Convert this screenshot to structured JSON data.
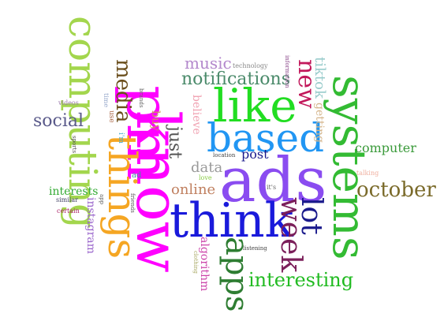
{
  "words": [
    {
      "text": "ads",
      "color": "#8a4cf0",
      "emphasis": 1
    },
    {
      "text": "pm",
      "color": "#ff00ff",
      "emphasis": 0.96
    },
    {
      "text": "know",
      "color": "#ff00ff",
      "emphasis": 0.95
    },
    {
      "text": "think",
      "color": "#1a1adb",
      "emphasis": 0.92
    },
    {
      "text": "like",
      "color": "#22dd22",
      "emphasis": 0.85
    },
    {
      "text": "systems",
      "color": "#33bb33",
      "emphasis": 0.85
    },
    {
      "text": "computing",
      "color": "#a3d64d",
      "emphasis": 0.78
    },
    {
      "text": "things",
      "color": "#f5a623",
      "emphasis": 0.78
    },
    {
      "text": "based",
      "color": "#2196f3",
      "emphasis": 0.75
    },
    {
      "text": "apps",
      "color": "#2e7d32",
      "emphasis": 0.6
    },
    {
      "text": "week",
      "color": "#7b1f5a",
      "emphasis": 0.55
    },
    {
      "text": "lot",
      "color": "#1a1a8c",
      "emphasis": 0.55
    },
    {
      "text": "new",
      "color": "#c2185b",
      "emphasis": 0.5
    },
    {
      "text": "october",
      "color": "#7a6a2a",
      "emphasis": 0.45
    },
    {
      "text": "interesting",
      "color": "#22bb22",
      "emphasis": 0.45
    },
    {
      "text": "media",
      "color": "#6b4f1d",
      "emphasis": 0.42
    },
    {
      "text": "notifications",
      "color": "#4a8a6a",
      "emphasis": 0.4
    },
    {
      "text": "just",
      "color": "#555555",
      "emphasis": 0.38
    },
    {
      "text": "social",
      "color": "#5a5a8a",
      "emphasis": 0.35
    },
    {
      "text": "online",
      "color": "#c08060",
      "emphasis": 0.33
    },
    {
      "text": "tiktok",
      "color": "#99cccc",
      "emphasis": 0.3
    },
    {
      "text": "music",
      "color": "#b388cc",
      "emphasis": 0.3
    },
    {
      "text": "computer",
      "color": "#3a9a3a",
      "emphasis": 0.3
    },
    {
      "text": "data",
      "color": "#9a9a9a",
      "emphasis": 0.3
    },
    {
      "text": "post",
      "color": "#1a1a8c",
      "emphasis": 0.28
    },
    {
      "text": "algorithm",
      "color": "#cc44aa",
      "emphasis": 0.25
    },
    {
      "text": "instagram",
      "color": "#9a66cc",
      "emphasis": 0.25
    },
    {
      "text": "interests",
      "color": "#33aa33",
      "emphasis": 0.25
    },
    {
      "text": "believe",
      "color": "#f0a0b0",
      "emphasis": 0.25
    },
    {
      "text": "getting",
      "color": "#d4b48a",
      "emphasis": 0.22
    },
    {
      "text": "buy",
      "color": "#cc9a5a",
      "emphasis": 0.22
    },
    {
      "text": "technology",
      "color": "#888888",
      "emphasis": 0.12
    },
    {
      "text": "information",
      "color": "#884488",
      "emphasis": 0.1
    },
    {
      "text": "videos",
      "color": "#9a7aaa",
      "emphasis": 0.12
    },
    {
      "text": "time",
      "color": "#99aacc",
      "emphasis": 0.12
    },
    {
      "text": "use",
      "color": "#aa6644",
      "emphasis": 0.12
    },
    {
      "text": "brands",
      "color": "#666666",
      "emphasis": 0.1
    },
    {
      "text": "i'm",
      "color": "#44aacc",
      "emphasis": 0.12
    },
    {
      "text": "location",
      "color": "#444444",
      "emphasis": 0.1
    },
    {
      "text": "love",
      "color": "#88cc44",
      "emphasis": 0.1
    },
    {
      "text": "ad",
      "color": "#4488aa",
      "emphasis": 0.12
    },
    {
      "text": "it's",
      "color": "#666666",
      "emphasis": 0.1
    },
    {
      "text": "sports",
      "color": "#555555",
      "emphasis": 0.1
    },
    {
      "text": "similar",
      "color": "#444466",
      "emphasis": 0.1
    },
    {
      "text": "certain",
      "color": "#aa2266",
      "emphasis": 0.1
    },
    {
      "text": "app",
      "color": "#666666",
      "emphasis": 0.1
    },
    {
      "text": "friends",
      "color": "#555555",
      "emphasis": 0.1
    },
    {
      "text": "clothing",
      "color": "#aaaa66",
      "emphasis": 0.1
    },
    {
      "text": "listening",
      "color": "#444444",
      "emphasis": 0.1
    },
    {
      "text": "talking",
      "color": "#f0b0a0",
      "emphasis": 0.1
    }
  ]
}
